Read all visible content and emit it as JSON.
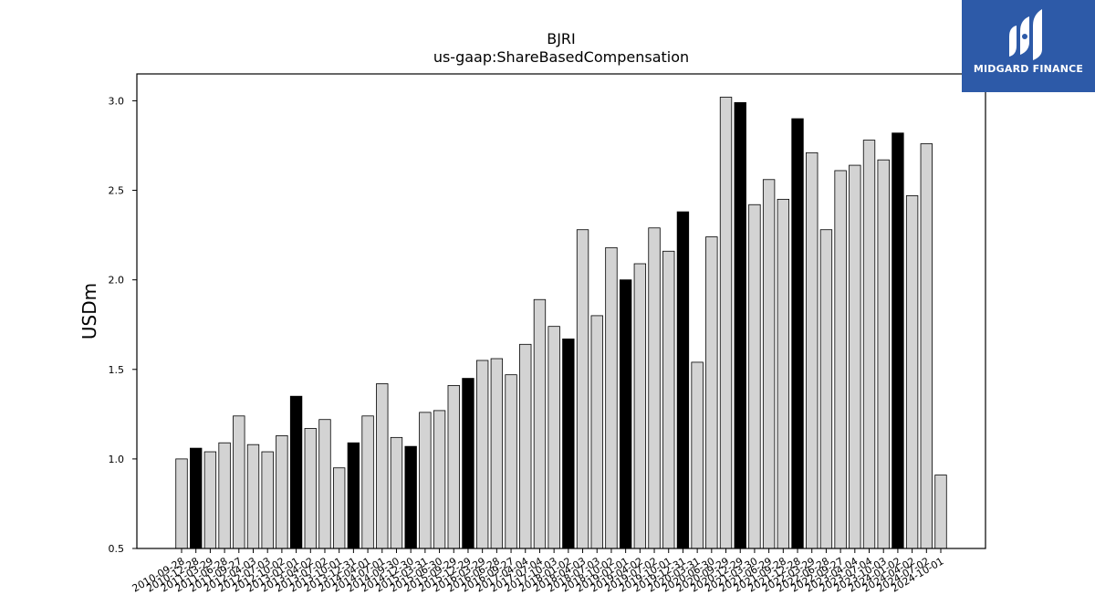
{
  "chart_data": {
    "type": "bar",
    "title": "BJRI",
    "subtitle": "us-gaap:ShareBasedCompensation",
    "xlabel": "",
    "ylabel": "USDm",
    "ylim": [
      0.5,
      3.15
    ],
    "yticks": [
      "0.5",
      "1.0",
      "1.5",
      "2.0",
      "2.5",
      "3.0"
    ],
    "grid": false,
    "colors": {
      "quarter": "#d3d3d3",
      "fiscal_year_end": "#000000",
      "edge": "#000000"
    },
    "categories": [
      "2010-09-28",
      "2010-12-28",
      "2011-03-29",
      "2011-06-28",
      "2011-09-27",
      "2012-04-03",
      "2012-07-03",
      "2012-10-02",
      "2013-01-01",
      "2013-04-02",
      "2013-07-02",
      "2013-10-01",
      "2013-12-31",
      "2014-04-01",
      "2014-07-01",
      "2014-09-30",
      "2014-12-30",
      "2015-03-31",
      "2015-06-30",
      "2015-09-29",
      "2015-12-29",
      "2016-03-29",
      "2016-06-28",
      "2016-09-27",
      "2017-04-04",
      "2017-07-04",
      "2017-10-03",
      "2018-01-02",
      "2018-04-03",
      "2018-07-03",
      "2018-10-02",
      "2019-01-01",
      "2019-04-02",
      "2019-07-02",
      "2019-10-01",
      "2019-12-31",
      "2020-03-31",
      "2020-06-30",
      "2020-09-29",
      "2020-12-29",
      "2021-03-30",
      "2021-06-29",
      "2021-09-28",
      "2021-12-28",
      "2022-03-29",
      "2022-06-28",
      "2022-09-27",
      "2023-04-04",
      "2023-07-04",
      "2023-10-03",
      "2024-01-02",
      "2024-04-02",
      "2024-07-02",
      "2024-10-01"
    ],
    "values": [
      1.0,
      1.06,
      1.04,
      1.09,
      1.24,
      1.08,
      1.04,
      1.13,
      1.35,
      1.17,
      1.22,
      0.95,
      1.09,
      1.24,
      1.42,
      1.12,
      1.07,
      1.26,
      1.27,
      1.41,
      1.45,
      1.55,
      1.56,
      1.47,
      1.64,
      1.89,
      1.74,
      1.67,
      2.28,
      1.8,
      2.18,
      2.0,
      2.09,
      2.29,
      2.16,
      2.38,
      1.54,
      2.24,
      3.02,
      2.99,
      2.42,
      2.56,
      2.45,
      2.9,
      2.71,
      2.28,
      2.61,
      2.64,
      2.78,
      2.67,
      2.82,
      2.47,
      2.76,
      0.91
    ],
    "fiscal_year_end": [
      false,
      true,
      false,
      false,
      false,
      false,
      false,
      false,
      true,
      false,
      false,
      false,
      true,
      false,
      false,
      false,
      true,
      false,
      false,
      false,
      true,
      false,
      false,
      false,
      false,
      false,
      false,
      true,
      false,
      false,
      false,
      true,
      false,
      false,
      false,
      true,
      false,
      false,
      false,
      true,
      false,
      false,
      false,
      true,
      false,
      false,
      false,
      false,
      false,
      false,
      true,
      false,
      false,
      false
    ]
  },
  "logo": {
    "text": "MIDGARD FINANCE"
  }
}
